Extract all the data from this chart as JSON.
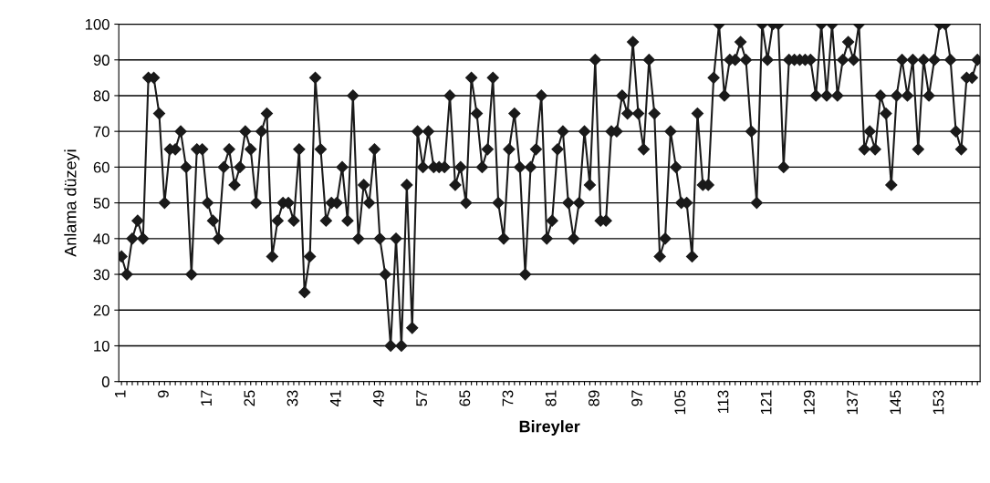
{
  "chart_data": {
    "type": "line",
    "xlabel": "Bireyler",
    "ylabel": "Anlama düzeyi",
    "categories": [
      "1",
      null,
      null,
      null,
      null,
      null,
      null,
      null,
      "9",
      null,
      null,
      null,
      null,
      null,
      null,
      null,
      "17",
      null,
      null,
      null,
      null,
      null,
      null,
      null,
      "25",
      null,
      null,
      null,
      null,
      null,
      null,
      null,
      "33",
      null,
      null,
      null,
      null,
      null,
      null,
      null,
      "41",
      null,
      null,
      null,
      null,
      null,
      null,
      null,
      "49",
      null,
      null,
      null,
      null,
      null,
      null,
      null,
      "57",
      null,
      null,
      null,
      null,
      null,
      null,
      null,
      "65",
      null,
      null,
      null,
      null,
      null,
      null,
      null,
      "73",
      null,
      null,
      null,
      null,
      null,
      null,
      null,
      "81",
      null,
      null,
      null,
      null,
      null,
      null,
      null,
      "89",
      null,
      null,
      null,
      null,
      null,
      null,
      null,
      "97",
      null,
      null,
      null,
      null,
      null,
      null,
      null,
      "105",
      null,
      null,
      null,
      null,
      null,
      null,
      null,
      "113",
      null,
      null,
      null,
      null,
      null,
      null,
      null,
      "121",
      null,
      null,
      null,
      null,
      null,
      null,
      null,
      "129",
      null,
      null,
      null,
      null,
      null,
      null,
      null,
      "137",
      null,
      null,
      null,
      null,
      null,
      null,
      null,
      "145",
      null,
      null,
      null,
      null,
      null,
      null,
      null,
      "153",
      null,
      null,
      null,
      null,
      null,
      null,
      null
    ],
    "series": [
      {
        "color": "#1a1a1a",
        "values": [
          35,
          30,
          40,
          45,
          40,
          85,
          85,
          75,
          50,
          65,
          65,
          70,
          60,
          30,
          65,
          65,
          50,
          45,
          40,
          60,
          65,
          55,
          60,
          70,
          65,
          50,
          70,
          75,
          35,
          45,
          50,
          50,
          45,
          65,
          25,
          35,
          85,
          65,
          45,
          50,
          50,
          60,
          45,
          80,
          40,
          55,
          50,
          65,
          40,
          30,
          10,
          40,
          10,
          55,
          15,
          70,
          60,
          70,
          60,
          60,
          60,
          80,
          55,
          60,
          50,
          85,
          75,
          60,
          65,
          85,
          50,
          40,
          65,
          75,
          60,
          30,
          60,
          65,
          80,
          40,
          45,
          65,
          70,
          50,
          40,
          50,
          70,
          55,
          90,
          45,
          45,
          70,
          70,
          80,
          75,
          95,
          75,
          65,
          90,
          75,
          35,
          40,
          70,
          60,
          50,
          50,
          35,
          75,
          55,
          55,
          85,
          100,
          80,
          90,
          90,
          95,
          90,
          70,
          50,
          100,
          90,
          100,
          100,
          60,
          90,
          90,
          90,
          90,
          90,
          80,
          100,
          80,
          100,
          80,
          90,
          95,
          90,
          100,
          65,
          70,
          65,
          80,
          75,
          55,
          80,
          90,
          80,
          90,
          65,
          90,
          80,
          90,
          100,
          100,
          90,
          70,
          65,
          85,
          85,
          90
        ]
      }
    ],
    "ylim": [
      0,
      100
    ],
    "yticks": [
      0,
      10,
      20,
      30,
      40,
      50,
      60,
      70,
      80,
      90,
      100
    ],
    "grid": "y",
    "marker": "diamond",
    "line_style": "solid"
  }
}
